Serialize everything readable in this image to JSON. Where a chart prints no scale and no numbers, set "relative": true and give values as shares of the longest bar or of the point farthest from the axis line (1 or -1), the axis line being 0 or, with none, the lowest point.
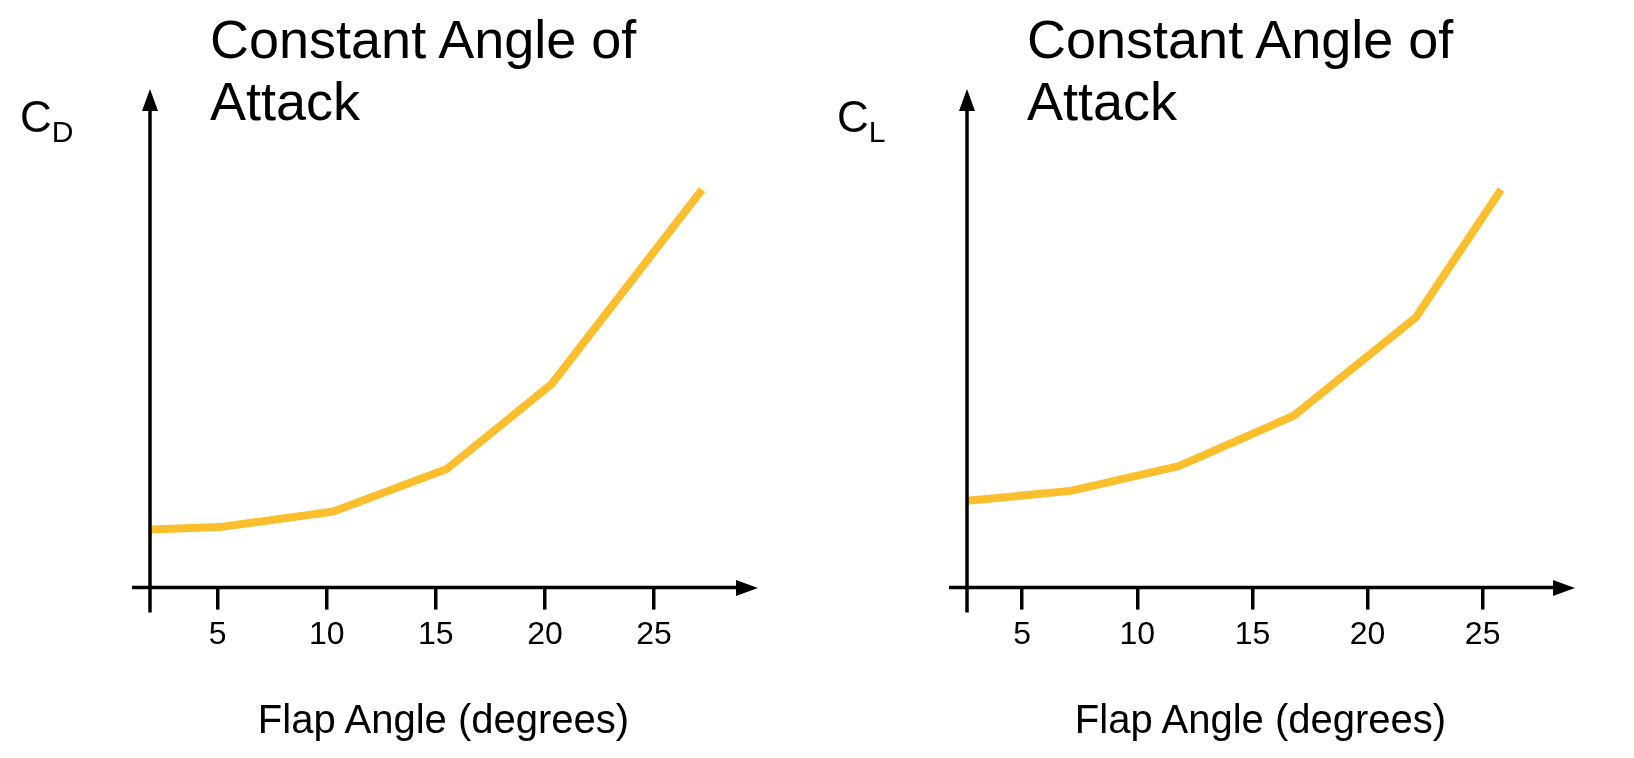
{
  "chart_data": [
    {
      "type": "line",
      "title": "Constant Angle of Attack",
      "ylabel": "C$_{D}$",
      "xlabel": "Flap Angle (degrees)",
      "relative": true,
      "marker": "none",
      "color": "#fbbf2e",
      "x": [
        1.9,
        5.1,
        10.3,
        15.5,
        20.3,
        27.2
      ],
      "values": [
        0.146,
        0.152,
        0.191,
        0.298,
        0.511,
        1
      ],
      "xlim": [
        1.9,
        28.8
      ],
      "xticks": [
        5,
        10,
        15,
        20,
        25
      ]
    },
    {
      "type": "line",
      "title": "Constant Angle of Attack",
      "ylabel": "C$_{L}$",
      "xlabel": "Flap Angle (degrees)",
      "relative": true,
      "marker": "none",
      "color": "#fbbf2e",
      "x": [
        2.6,
        7.1,
        11.8,
        16.8,
        22.1,
        25.8
      ],
      "values": [
        0.218,
        0.243,
        0.305,
        0.432,
        0.679,
        1
      ],
      "xlim": [
        2.6,
        28.1
      ],
      "xticks": [
        5,
        10,
        15,
        20,
        25
      ]
    }
  ]
}
